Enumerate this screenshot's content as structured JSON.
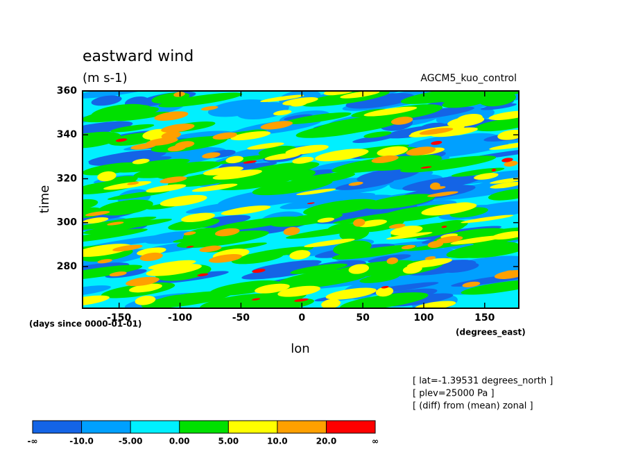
{
  "chart_data": {
    "type": "contour",
    "title": "eastward wind",
    "subtitle": "(m s-1)",
    "dataset": "AGCM5_kuo_control",
    "xlabel": "lon",
    "ylabel": "time",
    "x_units": "(degrees_east)",
    "y_units": "(days since 0000-01-01)",
    "xlim": [
      -180,
      178
    ],
    "ylim": [
      261,
      360
    ],
    "xticks": [
      -150,
      -100,
      -50,
      0,
      50,
      100,
      150
    ],
    "yticks": [
      280,
      300,
      320,
      340,
      360
    ],
    "colorbar": {
      "colors": [
        "#1464e6",
        "#00a0ff",
        "#00f0ff",
        "#00e000",
        "#ffff00",
        "#ffa000",
        "#ff0000"
      ],
      "labels": [
        "-∞",
        "-10.0",
        "-5.00",
        "0.00",
        "5.00",
        "10.0",
        "20.0",
        "∞"
      ]
    },
    "notes": [
      "[ lat=-1.39531 degrees_north ]",
      "[ plev=25000 Pa ]",
      "[ (diff) from (mean) zonal ]"
    ]
  }
}
